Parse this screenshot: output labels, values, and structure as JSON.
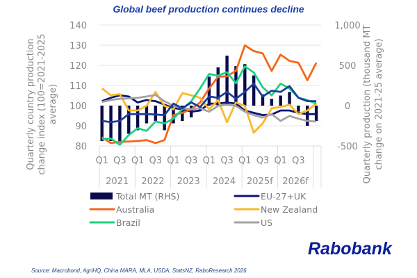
{
  "chart_data": {
    "type": "line+bar",
    "title": "Global beef production continues decline",
    "ylabel": "Quarterly country production change index (100=2021-2025 average)",
    "y2label": "Quarterly production (thousand MT change on 2021-25 average)",
    "ylim": [
      80,
      140
    ],
    "y_ticks": [
      "80",
      "90",
      "100",
      "110",
      "120",
      "130",
      "140"
    ],
    "y2lim": [
      -500,
      1000
    ],
    "y2_ticks": [
      "-500",
      "0",
      "500",
      "1,000"
    ],
    "grid": true,
    "legend_position": "bottom",
    "x": [
      "2021 Q1",
      "2021 Q2",
      "2021 Q3",
      "2021 Q4",
      "2022 Q1",
      "2022 Q2",
      "2022 Q3",
      "2022 Q4",
      "2023 Q1",
      "2023 Q2",
      "2023 Q3",
      "2023 Q4",
      "2024 Q1",
      "2024 Q2",
      "2024 Q3",
      "2024 Q4",
      "2025f Q1",
      "2025f Q2",
      "2025f Q3",
      "2025f Q4",
      "2026f Q1",
      "2026f Q2",
      "2026f Q3",
      "2026f Q4",
      "2027 Q1"
    ],
    "quarter_labels": [
      "Q1",
      "Q3",
      "Q1",
      "Q3",
      "Q1",
      "Q3",
      "Q1",
      "Q3",
      "Q1",
      "Q3",
      "Q1",
      "Q3"
    ],
    "year_labels": [
      "2021",
      "2022",
      "2023",
      "2024",
      "2025f",
      "2026f"
    ],
    "bars": {
      "name": "Total MT (RHS)",
      "color": "#0a0a4a",
      "axis": "right",
      "values": [
        -440,
        -440,
        -440,
        -350,
        -305,
        -220,
        -190,
        -305,
        -220,
        -190,
        -145,
        -60,
        360,
        475,
        620,
        490,
        515,
        375,
        140,
        85,
        125,
        170,
        -75,
        -250,
        -190
      ]
    },
    "series": [
      {
        "name": "EU-27+UK",
        "color": "#0d1470",
        "values": [
          102.2,
          103.9,
          105.1,
          104.5,
          101.6,
          102.8,
          102.2,
          100.5,
          98.8,
          98.2,
          97.0,
          97.6,
          101.0,
          101.0,
          101.6,
          101.0,
          97.6,
          96.4,
          95.3,
          95.6,
          97.6,
          97.6,
          96.4,
          95.8,
          95.8
        ]
      },
      {
        "name": "Australia",
        "color": "#f5661a",
        "values": [
          84.3,
          81.4,
          82.0,
          82.2,
          82.5,
          82.9,
          81.4,
          82.9,
          95.3,
          96.4,
          98.2,
          101.6,
          108.6,
          114.3,
          114.6,
          117.2,
          129.9,
          127.1,
          125.9,
          117.2,
          125.3,
          122.2,
          121.3,
          112.6,
          121.3
        ]
      },
      {
        "name": "New Zealand",
        "color": "#fbb829",
        "values": [
          108.6,
          105.1,
          105.7,
          97.6,
          97.6,
          99.9,
          106.8,
          99.9,
          98.2,
          106.2,
          105.1,
          103.9,
          98.2,
          102.8,
          91.8,
          101.6,
          99.9,
          86.6,
          91.2,
          98.7,
          99.3,
          100.5,
          95.8,
          97.6,
          101.0
        ]
      },
      {
        "name": "Brazil",
        "color": "#1fcf84",
        "values": [
          83.4,
          83.7,
          80.6,
          85.4,
          88.8,
          87.5,
          92.1,
          91.2,
          93.5,
          98.2,
          102.2,
          108.6,
          115.7,
          114.9,
          116.6,
          111.1,
          119.5,
          116.4,
          109.1,
          105.1,
          110.9,
          108.6,
          103.9,
          102.8,
          101.0
        ]
      },
      {
        "name": "US",
        "color": "#a3a3a3",
        "values": [
          101.8,
          102.8,
          103.4,
          103.6,
          103.9,
          104.5,
          105.3,
          102.2,
          99.9,
          98.7,
          98.2,
          98.7,
          97.0,
          99.9,
          100.5,
          99.9,
          97.0,
          95.3,
          94.1,
          95.8,
          92.4,
          94.9,
          93.5,
          92.4,
          92.1
        ]
      },
      {
        "color": "#1b3d9c",
        "values": [
          92.4,
          91.8,
          92.4,
          95.8,
          95.8,
          95.8,
          95.6,
          95.3,
          101.0,
          98.7,
          101.6,
          99.3,
          104.5,
          103.9,
          106.8,
          103.4,
          106.8,
          110.9,
          104.5,
          107.4,
          106.8,
          109.7,
          103.9,
          102.2,
          102.2
        ]
      }
    ]
  },
  "legend": [
    "Total MT (RHS)",
    "EU-27+UK",
    "Australia",
    "New Zealand",
    "Brazil",
    "US"
  ],
  "logo": "Rabobank",
  "source": "Source: Macrobond, AgriHQ, China MARA, MLA, USDA, StatsNZ, RaboResearch 2026"
}
